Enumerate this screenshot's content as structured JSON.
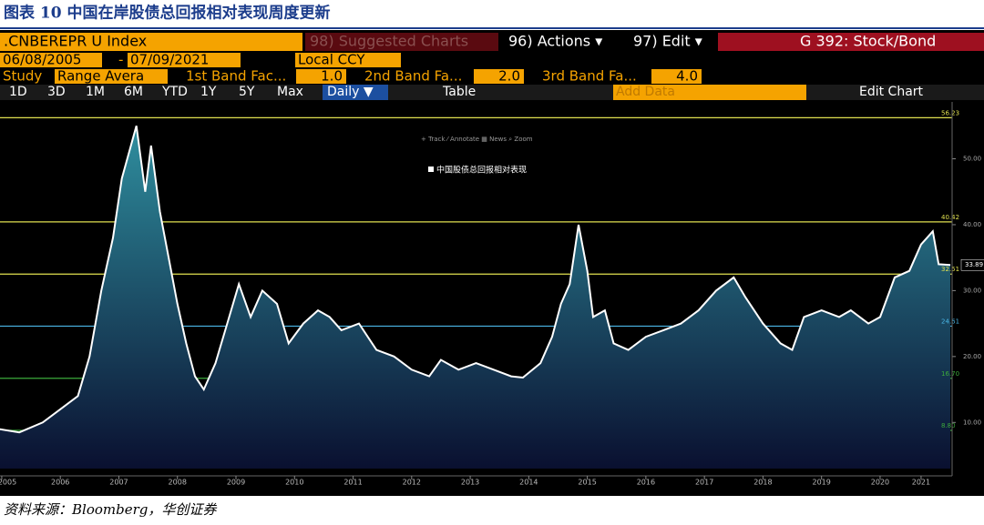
{
  "caption": "图表 10 中国在岸股债总回报相对表现周度更新",
  "toolbar": {
    "ticker": ".CNBEREPR U Index",
    "suggested": "98) Suggested Charts",
    "actions": "96) Actions ▾",
    "edit": "97) Edit ▾",
    "function": "G 392: Stock/Bond",
    "start_date": "06/08/2005",
    "dash": "-",
    "end_date": "07/09/2021",
    "currency": "Local CCY",
    "study": "Study",
    "study_type": "Range Avera",
    "band1_label": "1st Band Fac...",
    "band1": "1.0",
    "band2_label": "2nd Band Fa...",
    "band2": "2.0",
    "band3_label": "3rd Band Fa...",
    "band3": "4.0",
    "periods": [
      "1D",
      "3D",
      "1M",
      "6M",
      "YTD",
      "1Y",
      "5Y",
      "Max"
    ],
    "frequency": "Daily ▼",
    "table": "Table",
    "add_data": "Add Data",
    "edit_chart": "Edit Chart"
  },
  "chart_data": {
    "type": "area",
    "tools": "+ Track   ⁄ Annotate   ▦ News   ⌕ Zoom",
    "x": [
      2005.45,
      2005.8,
      2006.2,
      2006.5,
      2006.8,
      2007.0,
      2007.2,
      2007.4,
      2007.55,
      2007.8,
      2007.95,
      2008.05,
      2008.2,
      2008.35,
      2008.5,
      2008.65,
      2008.8,
      2008.95,
      2009.15,
      2009.35,
      2009.55,
      2009.75,
      2009.95,
      2010.2,
      2010.4,
      2010.65,
      2010.9,
      2011.1,
      2011.3,
      2011.6,
      2011.9,
      2012.2,
      2012.5,
      2012.8,
      2013.0,
      2013.3,
      2013.6,
      2013.9,
      2014.2,
      2014.4,
      2014.7,
      2014.9,
      2015.05,
      2015.2,
      2015.35,
      2015.5,
      2015.6,
      2015.8,
      2015.95,
      2016.2,
      2016.5,
      2016.8,
      2017.1,
      2017.4,
      2017.7,
      2018.0,
      2018.2,
      2018.5,
      2018.8,
      2019.0,
      2019.2,
      2019.5,
      2019.8,
      2020.0,
      2020.3,
      2020.5,
      2020.75,
      2021.0,
      2021.2,
      2021.4,
      2021.5,
      2021.7
    ],
    "series": [
      {
        "name": "中国股债总回报相对表现",
        "color": "#ffffff",
        "values": [
          9,
          8.5,
          10,
          12,
          14,
          20,
          30,
          38,
          47,
          55,
          45,
          52,
          42,
          35,
          28,
          22,
          17,
          15,
          19,
          25,
          31,
          26,
          30,
          28,
          22,
          25,
          27,
          26,
          24,
          25,
          21,
          20,
          18,
          17,
          19.5,
          18,
          19,
          18,
          17,
          16.8,
          19,
          23,
          28,
          31,
          40,
          33,
          26,
          27,
          22,
          21,
          23,
          24,
          25,
          27,
          30,
          32,
          29,
          25,
          22,
          21,
          26,
          27,
          26,
          27,
          25,
          26,
          32,
          33,
          37,
          39,
          34,
          33.89
        ]
      }
    ],
    "last_value": 33.89,
    "bands": [
      {
        "value": 56.23,
        "label": "56.23",
        "color": "#e0e050"
      },
      {
        "value": 40.42,
        "label": "40.42",
        "color": "#e0e050"
      },
      {
        "value": 32.51,
        "label": "32.51",
        "color": "#e0e050"
      },
      {
        "value": 24.61,
        "label": "24.61",
        "color": "#4ab6e6"
      },
      {
        "value": 16.7,
        "label": "16.70",
        "color": "#3caa3c"
      },
      {
        "value": 8.8,
        "label": "8.80",
        "color": "#3caa3c"
      }
    ],
    "xlim": [
      2005.47,
      2021.73
    ],
    "ylim": [
      3,
      57.8
    ],
    "xticks": [
      {
        "value": 2005.5,
        "label": "2005"
      },
      {
        "value": 2006.5,
        "label": "2006"
      },
      {
        "value": 2007.5,
        "label": "2007"
      },
      {
        "value": 2008.5,
        "label": "2008"
      },
      {
        "value": 2009.5,
        "label": "2009"
      },
      {
        "value": 2010.5,
        "label": "2010"
      },
      {
        "value": 2011.5,
        "label": "2011"
      },
      {
        "value": 2012.5,
        "label": "2012"
      },
      {
        "value": 2013.5,
        "label": "2013"
      },
      {
        "value": 2014.5,
        "label": "2014"
      },
      {
        "value": 2015.5,
        "label": "2015"
      },
      {
        "value": 2016.5,
        "label": "2016"
      },
      {
        "value": 2017.5,
        "label": "2017"
      },
      {
        "value": 2018.5,
        "label": "2018"
      },
      {
        "value": 2019.5,
        "label": "2019"
      },
      {
        "value": 2020.5,
        "label": "2020"
      },
      {
        "value": 2021.2,
        "label": "2021"
      }
    ],
    "yticks": [
      {
        "value": 10,
        "label": "10.00"
      },
      {
        "value": 20,
        "label": "20.00"
      },
      {
        "value": 30,
        "label": "30.00"
      },
      {
        "value": 40,
        "label": "40.00"
      },
      {
        "value": 50,
        "label": "50.00"
      }
    ]
  },
  "source": "资料来源：Bloomberg，华创证券"
}
